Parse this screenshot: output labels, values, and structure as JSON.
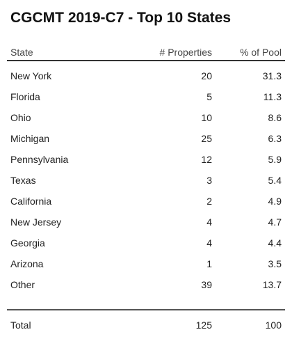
{
  "chart_data": {
    "type": "table",
    "title": "CGCMT 2019-C7 - Top 10 States",
    "columns": [
      "State",
      "# Properties",
      "% of Pool"
    ],
    "rows": [
      {
        "state": "New York",
        "properties": "20",
        "pct": "31.3"
      },
      {
        "state": "Florida",
        "properties": "5",
        "pct": "11.3"
      },
      {
        "state": "Ohio",
        "properties": "10",
        "pct": "8.6"
      },
      {
        "state": "Michigan",
        "properties": "25",
        "pct": "6.3"
      },
      {
        "state": "Pennsylvania",
        "properties": "12",
        "pct": "5.9"
      },
      {
        "state": "Texas",
        "properties": "3",
        "pct": "5.4"
      },
      {
        "state": "California",
        "properties": "2",
        "pct": "4.9"
      },
      {
        "state": "New Jersey",
        "properties": "4",
        "pct": "4.7"
      },
      {
        "state": "Georgia",
        "properties": "4",
        "pct": "4.4"
      },
      {
        "state": "Arizona",
        "properties": "1",
        "pct": "3.5"
      },
      {
        "state": "Other",
        "properties": "39",
        "pct": "13.7"
      }
    ],
    "total": {
      "state": "Total",
      "properties": "125",
      "pct": "100"
    }
  }
}
